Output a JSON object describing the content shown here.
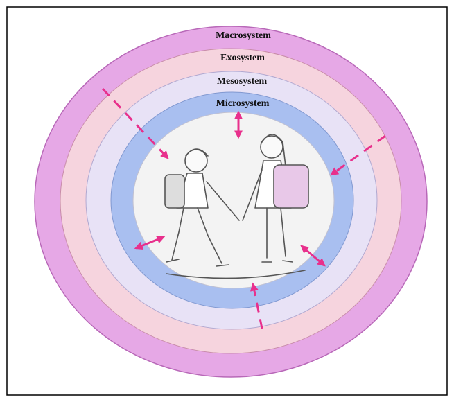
{
  "layers": [
    {
      "label": "Macrosystem"
    },
    {
      "label": "Exosystem"
    },
    {
      "label": "Mesosystem"
    },
    {
      "label": "Microsystem"
    }
  ]
}
